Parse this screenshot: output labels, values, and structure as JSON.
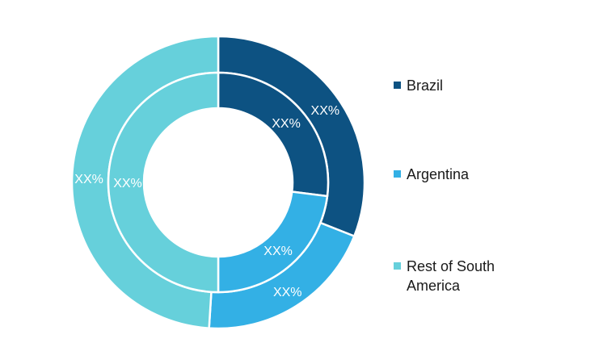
{
  "chart_data": {
    "type": "pie",
    "variant": "double-donut",
    "categories": [
      "Brazil",
      "Argentina",
      "Rest of South America"
    ],
    "colors": {
      "Brazil": "#0d5282",
      "Argentina": "#33b0e5",
      "Rest of South America": "#66d0db"
    },
    "series": [
      {
        "ring": "outer",
        "values": [
          31,
          20,
          49
        ],
        "labels": [
          "XX%",
          "XX%",
          "XX%"
        ]
      },
      {
        "ring": "inner",
        "values": [
          27,
          23,
          50
        ],
        "labels": [
          "XX%",
          "XX%",
          "XX%"
        ]
      }
    ],
    "legend": {
      "position": "right",
      "items": [
        "Brazil",
        "Argentina",
        "Rest of South America"
      ],
      "item_lines": [
        [
          "Brazil"
        ],
        [
          "Argentina"
        ],
        [
          "Rest of South",
          "America"
        ]
      ]
    }
  }
}
